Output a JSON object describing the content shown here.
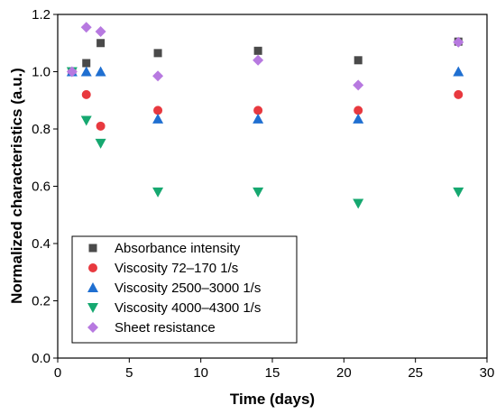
{
  "chart_data": {
    "type": "scatter",
    "xlabel": "Time (days)",
    "ylabel": "Normalized characteristics (a.u.)",
    "xlim": [
      0,
      30
    ],
    "ylim": [
      0,
      1.2
    ],
    "x_ticks": [
      "0",
      "5",
      "10",
      "15",
      "20",
      "25",
      "30"
    ],
    "y_ticks": [
      "0.0",
      "0.2",
      "0.4",
      "0.6",
      "0.8",
      "1.0",
      "1.2"
    ],
    "grid": false,
    "legend_position": "bottom-left",
    "series": [
      {
        "name": "Absorbance intensity",
        "marker": "square",
        "color": "#4a4a4a",
        "points": [
          [
            1,
            1.0
          ],
          [
            2,
            1.03
          ],
          [
            3,
            1.1
          ],
          [
            7,
            1.065
          ],
          [
            14,
            1.073
          ],
          [
            21,
            1.04
          ],
          [
            28,
            1.105
          ]
        ]
      },
      {
        "name": "Viscosity 72–170 1/s",
        "marker": "circle",
        "color": "#e8393f",
        "points": [
          [
            1,
            1.0
          ],
          [
            2,
            0.92
          ],
          [
            3,
            0.81
          ],
          [
            7,
            0.865
          ],
          [
            14,
            0.865
          ],
          [
            21,
            0.865
          ],
          [
            28,
            0.92
          ]
        ]
      },
      {
        "name": "Viscosity 2500–3000 1/s",
        "marker": "triangle-up",
        "color": "#1f6fd1",
        "points": [
          [
            1,
            1.0
          ],
          [
            2,
            1.0
          ],
          [
            3,
            1.0
          ],
          [
            7,
            0.835
          ],
          [
            14,
            0.835
          ],
          [
            21,
            0.835
          ],
          [
            28,
            1.0
          ]
        ]
      },
      {
        "name": "Viscosity 4000–4300 1/s",
        "marker": "triangle-down",
        "color": "#16a870",
        "points": [
          [
            1,
            1.0
          ],
          [
            2,
            0.83
          ],
          [
            3,
            0.75
          ],
          [
            7,
            0.58
          ],
          [
            14,
            0.58
          ],
          [
            21,
            0.54
          ],
          [
            28,
            0.58
          ]
        ]
      },
      {
        "name": "Sheet resistance",
        "marker": "diamond",
        "color": "#b779e0",
        "points": [
          [
            1,
            1.0
          ],
          [
            2,
            1.155
          ],
          [
            3,
            1.14
          ],
          [
            7,
            0.985
          ],
          [
            14,
            1.04
          ],
          [
            21,
            0.953
          ],
          [
            28,
            1.103
          ]
        ]
      }
    ]
  }
}
